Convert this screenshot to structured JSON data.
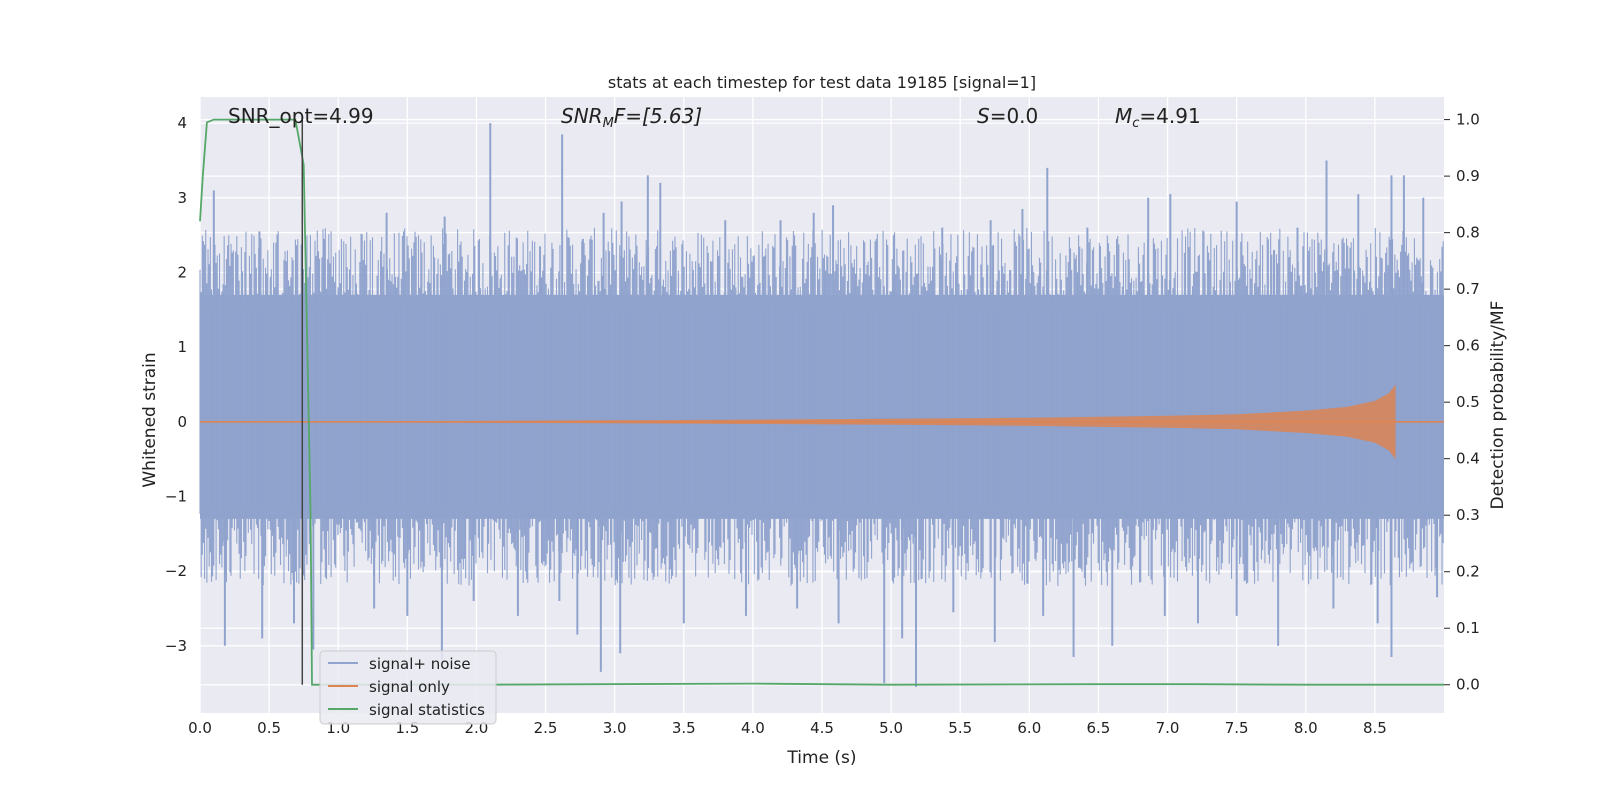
{
  "chart_data": {
    "type": "line",
    "title": "stats at each timestep for test data 19185 [signal=1]",
    "xlabel": "Time (s)",
    "ylabel": "Whitened strain",
    "y2label": "Detection probability/MF",
    "xlim": [
      0,
      9.0
    ],
    "ylim": [
      -3.9,
      4.35
    ],
    "y2lim": [
      -0.05,
      1.04
    ],
    "xticks": [
      0.0,
      0.5,
      1.0,
      1.5,
      2.0,
      2.5,
      3.0,
      3.5,
      4.0,
      4.5,
      5.0,
      5.5,
      6.0,
      6.5,
      7.0,
      7.5,
      8.0,
      8.5
    ],
    "xtick_labels": [
      "0.0",
      "0.5",
      "1.0",
      "1.5",
      "2.0",
      "2.5",
      "3.0",
      "3.5",
      "4.0",
      "4.5",
      "5.0",
      "5.5",
      "6.0",
      "6.5",
      "7.0",
      "7.5",
      "8.0",
      "8.5"
    ],
    "yticks": [
      -3,
      -2,
      -1,
      0,
      1,
      2,
      3,
      4
    ],
    "ytick_labels": [
      "−3",
      "−2",
      "−1",
      "0",
      "1",
      "2",
      "3",
      "4"
    ],
    "y2ticks": [
      0.0,
      0.1,
      0.2,
      0.3,
      0.4,
      0.5,
      0.6,
      0.7,
      0.8,
      0.9,
      1.0
    ],
    "y2tick_labels": [
      "0.0",
      "0.1",
      "0.2",
      "0.3",
      "0.4",
      "0.5",
      "0.6",
      "0.7",
      "0.8",
      "0.9",
      "1.0"
    ],
    "grid": true,
    "legend_position": "bottom-left",
    "annotations": {
      "snr_opt": "SNR_opt=4.99",
      "snr_mf_prefix": "SNR",
      "snr_mf_sub": "M",
      "snr_mf_suffix": "F=[5.63]",
      "s_label": "S",
      "s_value": "=0.0",
      "mc_label": "M",
      "mc_sub": "c",
      "mc_value": "=4.91"
    },
    "marker_line_x": 0.74,
    "series": [
      {
        "name": "signal+ noise",
        "color": "#8fa3cd",
        "kind": "noise",
        "envelope_upper": 1.7,
        "envelope_lower": -1.3,
        "peak_x": [
          0.1,
          0.43,
          0.9,
          1.35,
          1.77,
          2.1,
          2.46,
          2.62,
          2.77,
          2.92,
          3.05,
          3.24,
          3.33,
          3.8,
          4.2,
          4.44,
          4.58,
          5.02,
          5.37,
          5.72,
          5.95,
          6.13,
          6.42,
          6.86,
          7.02,
          7.5,
          7.77,
          7.94,
          8.15,
          8.38,
          8.62,
          8.71,
          8.85
        ],
        "peak_y": [
          3.1,
          2.55,
          2.45,
          2.8,
          2.75,
          4.0,
          2.35,
          3.85,
          2.45,
          2.8,
          2.95,
          3.3,
          3.2,
          2.7,
          2.7,
          2.8,
          2.9,
          2.5,
          2.6,
          2.7,
          2.85,
          3.4,
          2.6,
          3.0,
          3.05,
          2.95,
          2.3,
          2.6,
          3.5,
          3.05,
          3.3,
          3.3,
          3.0
        ],
        "trough_x": [
          0.18,
          0.45,
          0.68,
          0.82,
          1.26,
          1.5,
          1.75,
          1.98,
          2.3,
          2.6,
          2.73,
          2.9,
          3.04,
          3.5,
          3.95,
          4.32,
          4.62,
          4.95,
          5.08,
          5.18,
          5.45,
          5.75,
          6.1,
          6.32,
          6.6,
          6.98,
          7.22,
          7.5,
          7.8,
          8.2,
          8.52,
          8.62,
          8.95
        ],
        "trough_y": [
          -3.0,
          -2.9,
          -2.7,
          -3.05,
          -2.5,
          -2.6,
          -3.2,
          -2.4,
          -2.6,
          -2.4,
          -2.85,
          -3.35,
          -3.1,
          -2.7,
          -2.6,
          -2.5,
          -2.7,
          -3.5,
          -2.9,
          -3.55,
          -2.55,
          -2.95,
          -2.6,
          -3.15,
          -3.0,
          -2.6,
          -2.7,
          -2.6,
          -3.0,
          -2.5,
          -2.7,
          -3.15,
          -2.35
        ]
      },
      {
        "name": "signal only",
        "color": "#dd8452",
        "kind": "chirp",
        "start_x": 0.0,
        "peak_time": 8.65,
        "end_x": 9.0,
        "x": [
          0.0,
          1.0,
          2.0,
          3.0,
          4.0,
          5.0,
          6.0,
          7.0,
          7.5,
          8.0,
          8.3,
          8.5,
          8.6,
          8.65
        ],
        "amplitude": [
          0.005,
          0.008,
          0.012,
          0.02,
          0.03,
          0.04,
          0.055,
          0.08,
          0.1,
          0.15,
          0.2,
          0.28,
          0.38,
          0.5
        ]
      },
      {
        "name": "signal statistics",
        "color": "#55a868",
        "axis": "secondary",
        "x": [
          0.0,
          0.02,
          0.05,
          0.1,
          0.2,
          0.4,
          0.6,
          0.69,
          0.75,
          0.8,
          0.81,
          2.0,
          4.0,
          5.0,
          6.5,
          7.2,
          8.0,
          9.0
        ],
        "y": [
          0.82,
          0.9,
          0.995,
          1.0,
          1.0,
          1.0,
          1.0,
          1.0,
          0.92,
          0.3,
          0.0,
          0.0,
          0.002,
          0.0,
          0.001,
          0.001,
          0.0,
          0.0
        ]
      }
    ]
  }
}
